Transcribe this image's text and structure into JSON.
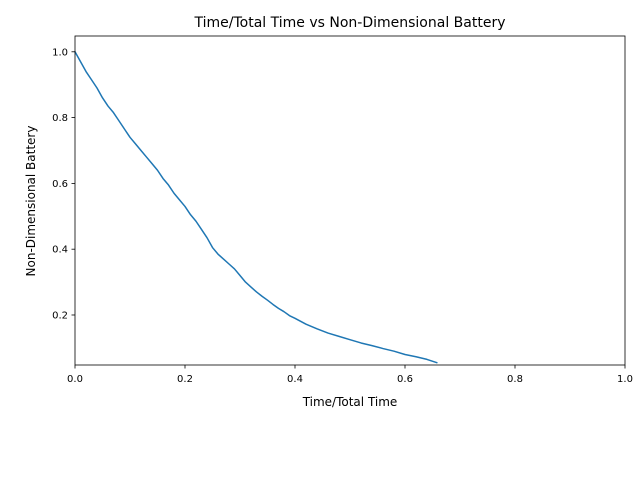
{
  "chart_data": {
    "type": "line",
    "title": "Time/Total Time vs Non-Dimensional Battery",
    "xlabel": "Time/Total Time",
    "ylabel": "Non-Dimensional Battery",
    "xlim": [
      0,
      1
    ],
    "ylim": [
      0.048,
      1.048
    ],
    "x_ticks": [
      0,
      0.2,
      0.4,
      0.6,
      0.8,
      1.0
    ],
    "x_tick_labels": [
      "0.0",
      "0.2",
      "0.4",
      "0.6",
      "0.8",
      "1.0"
    ],
    "y_ticks": [
      0.2,
      0.4,
      0.6,
      0.8,
      1.0
    ],
    "y_tick_labels": [
      "0.2",
      "0.4",
      "0.6",
      "0.8",
      "1.0"
    ],
    "grid": false,
    "legend": "none",
    "series": [
      {
        "color": "#1f77b4",
        "x": [
          0.0,
          0.01,
          0.02,
          0.03,
          0.04,
          0.05,
          0.06,
          0.07,
          0.08,
          0.09,
          0.1,
          0.11,
          0.12,
          0.13,
          0.14,
          0.15,
          0.16,
          0.17,
          0.18,
          0.19,
          0.2,
          0.21,
          0.22,
          0.23,
          0.24,
          0.25,
          0.26,
          0.27,
          0.28,
          0.29,
          0.3,
          0.31,
          0.32,
          0.33,
          0.34,
          0.35,
          0.36,
          0.37,
          0.38,
          0.39,
          0.4,
          0.42,
          0.44,
          0.46,
          0.48,
          0.5,
          0.52,
          0.54,
          0.56,
          0.58,
          0.6,
          0.62,
          0.64,
          0.658
        ],
        "y": [
          1.0,
          0.97,
          0.94,
          0.915,
          0.89,
          0.86,
          0.835,
          0.815,
          0.79,
          0.765,
          0.74,
          0.72,
          0.7,
          0.68,
          0.66,
          0.64,
          0.615,
          0.595,
          0.57,
          0.55,
          0.53,
          0.505,
          0.485,
          0.46,
          0.435,
          0.405,
          0.385,
          0.37,
          0.355,
          0.34,
          0.32,
          0.3,
          0.285,
          0.27,
          0.257,
          0.245,
          0.232,
          0.22,
          0.21,
          0.198,
          0.19,
          0.172,
          0.158,
          0.145,
          0.135,
          0.125,
          0.115,
          0.107,
          0.098,
          0.09,
          0.08,
          0.073,
          0.065,
          0.055
        ]
      }
    ]
  }
}
